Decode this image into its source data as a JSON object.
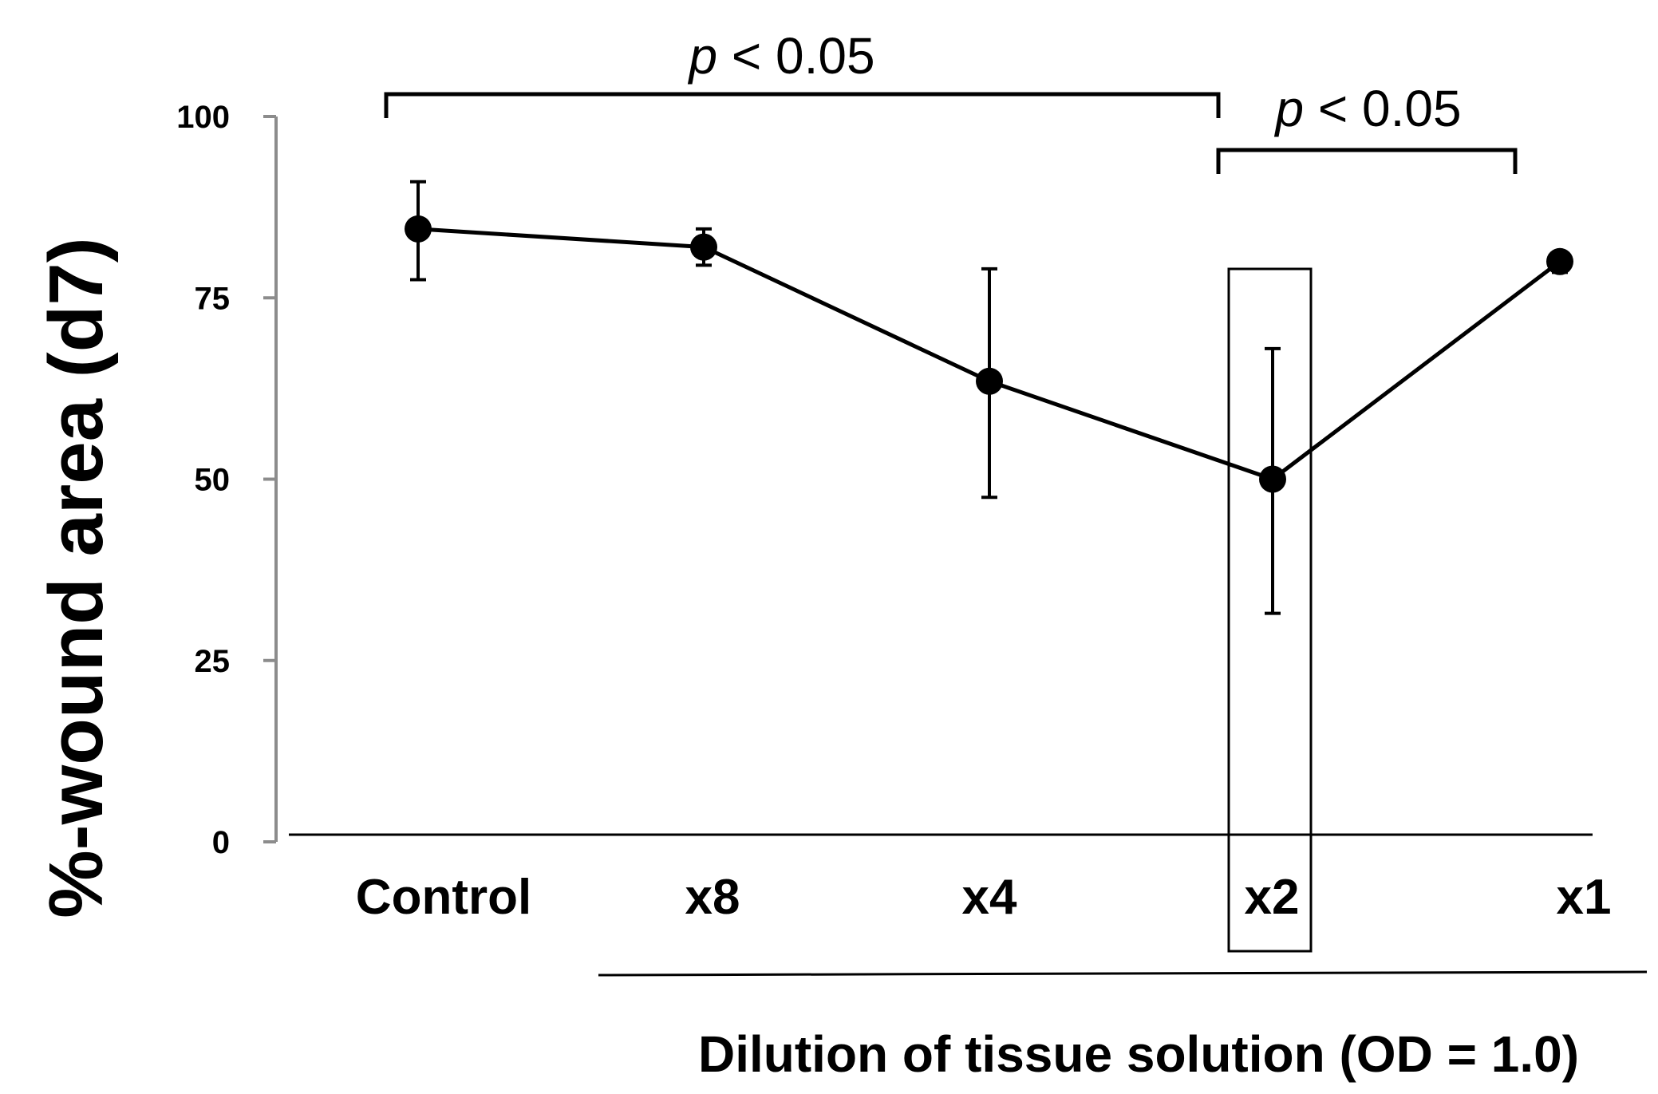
{
  "chart_data": {
    "type": "line",
    "title": "",
    "ylabel": "%-wound area (d7)",
    "xlabel": "Dilution of tissue solution (OD = 1.0)",
    "ylim": [
      0,
      100
    ],
    "yticks": [
      "0",
      "25",
      "50",
      "75",
      "100"
    ],
    "categories": [
      "Control",
      "x8",
      "x4",
      "x2",
      "x1"
    ],
    "values": [
      84.5,
      82,
      63.5,
      50,
      80
    ],
    "error_upper": [
      91,
      84.5,
      79,
      68,
      81
    ],
    "error_lower": [
      77.5,
      79.5,
      47.5,
      31.5,
      78.5
    ],
    "grid": false,
    "highlight_category": "x2",
    "significance": [
      {
        "from": "Control",
        "to": "x2",
        "p": "p",
        "rest": " < 0.05"
      },
      {
        "from": "x2",
        "to": "x1",
        "p": "p",
        "rest": " < 0.05"
      }
    ],
    "colors": {
      "line": "#000000",
      "marker": "#000000",
      "axis": "#8c8c8c"
    }
  }
}
